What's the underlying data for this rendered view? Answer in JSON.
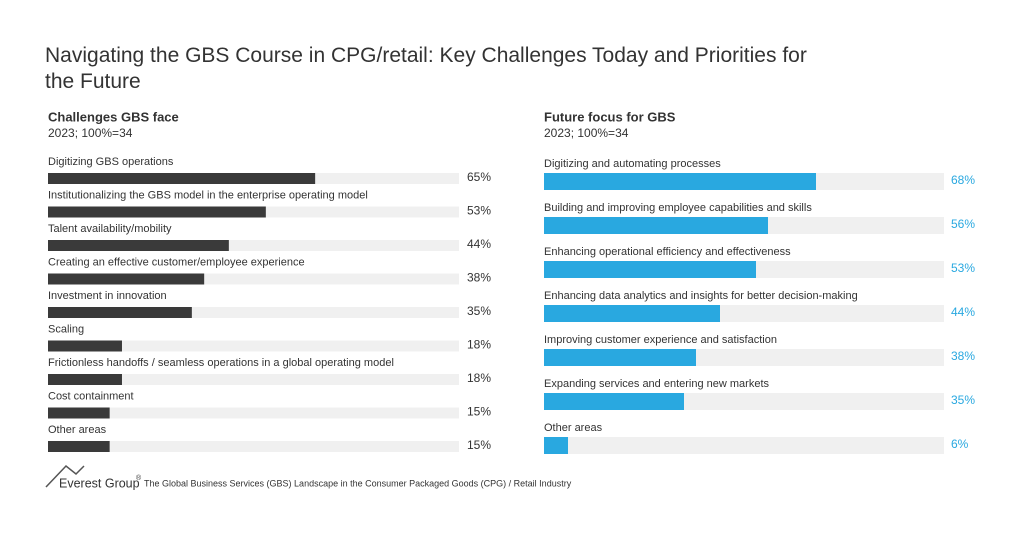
{
  "title": "Navigating the GBS Course in CPG/retail: Key Challenges Today and Priorities for the Future",
  "footer": {
    "brand": "Everest Group",
    "registered": "®",
    "source": "The Global Business Services (GBS) Landscape in the Consumer Packaged Goods (CPG) / Retail Industry"
  },
  "chart_data": [
    {
      "type": "bar",
      "orientation": "horizontal",
      "title": "Challenges GBS face",
      "subtitle": "2023; 100%=34",
      "categories": [
        "Digitizing GBS operations",
        "Institutionalizing the GBS model in the enterprise operating model",
        "Talent availability/mobility",
        "Creating an effective customer/employee experience",
        "Investment in innovation",
        "Scaling",
        "Frictionless handoffs / seamless operations in a global operating model",
        "Cost containment",
        "Other areas"
      ],
      "values": [
        65,
        53,
        44,
        38,
        35,
        18,
        18,
        15,
        15
      ],
      "value_labels": [
        "65%",
        "53%",
        "44%",
        "38%",
        "35%",
        "18%",
        "18%",
        "15%",
        "15%"
      ],
      "xlim": [
        0,
        100
      ],
      "color": "#3a3a3a",
      "track_color": "#f0f0f0",
      "value_label_color": "#333333"
    },
    {
      "type": "bar",
      "orientation": "horizontal",
      "title": "Future focus for GBS",
      "subtitle": "2023; 100%=34",
      "categories": [
        "Digitizing and automating processes",
        "Building and improving employee capabilities and skills",
        "Enhancing operational efficiency and effectiveness",
        "Enhancing data analytics and insights for better decision-making",
        "Improving customer experience and satisfaction",
        "Expanding services and entering new markets",
        "Other areas"
      ],
      "values": [
        68,
        56,
        53,
        44,
        38,
        35,
        6
      ],
      "value_labels": [
        "68%",
        "56%",
        "53%",
        "44%",
        "38%",
        "35%",
        "6%"
      ],
      "xlim": [
        0,
        100
      ],
      "color": "#29a8e0",
      "track_color": "#f0f0f0",
      "value_label_color": "#29a8e0"
    }
  ]
}
